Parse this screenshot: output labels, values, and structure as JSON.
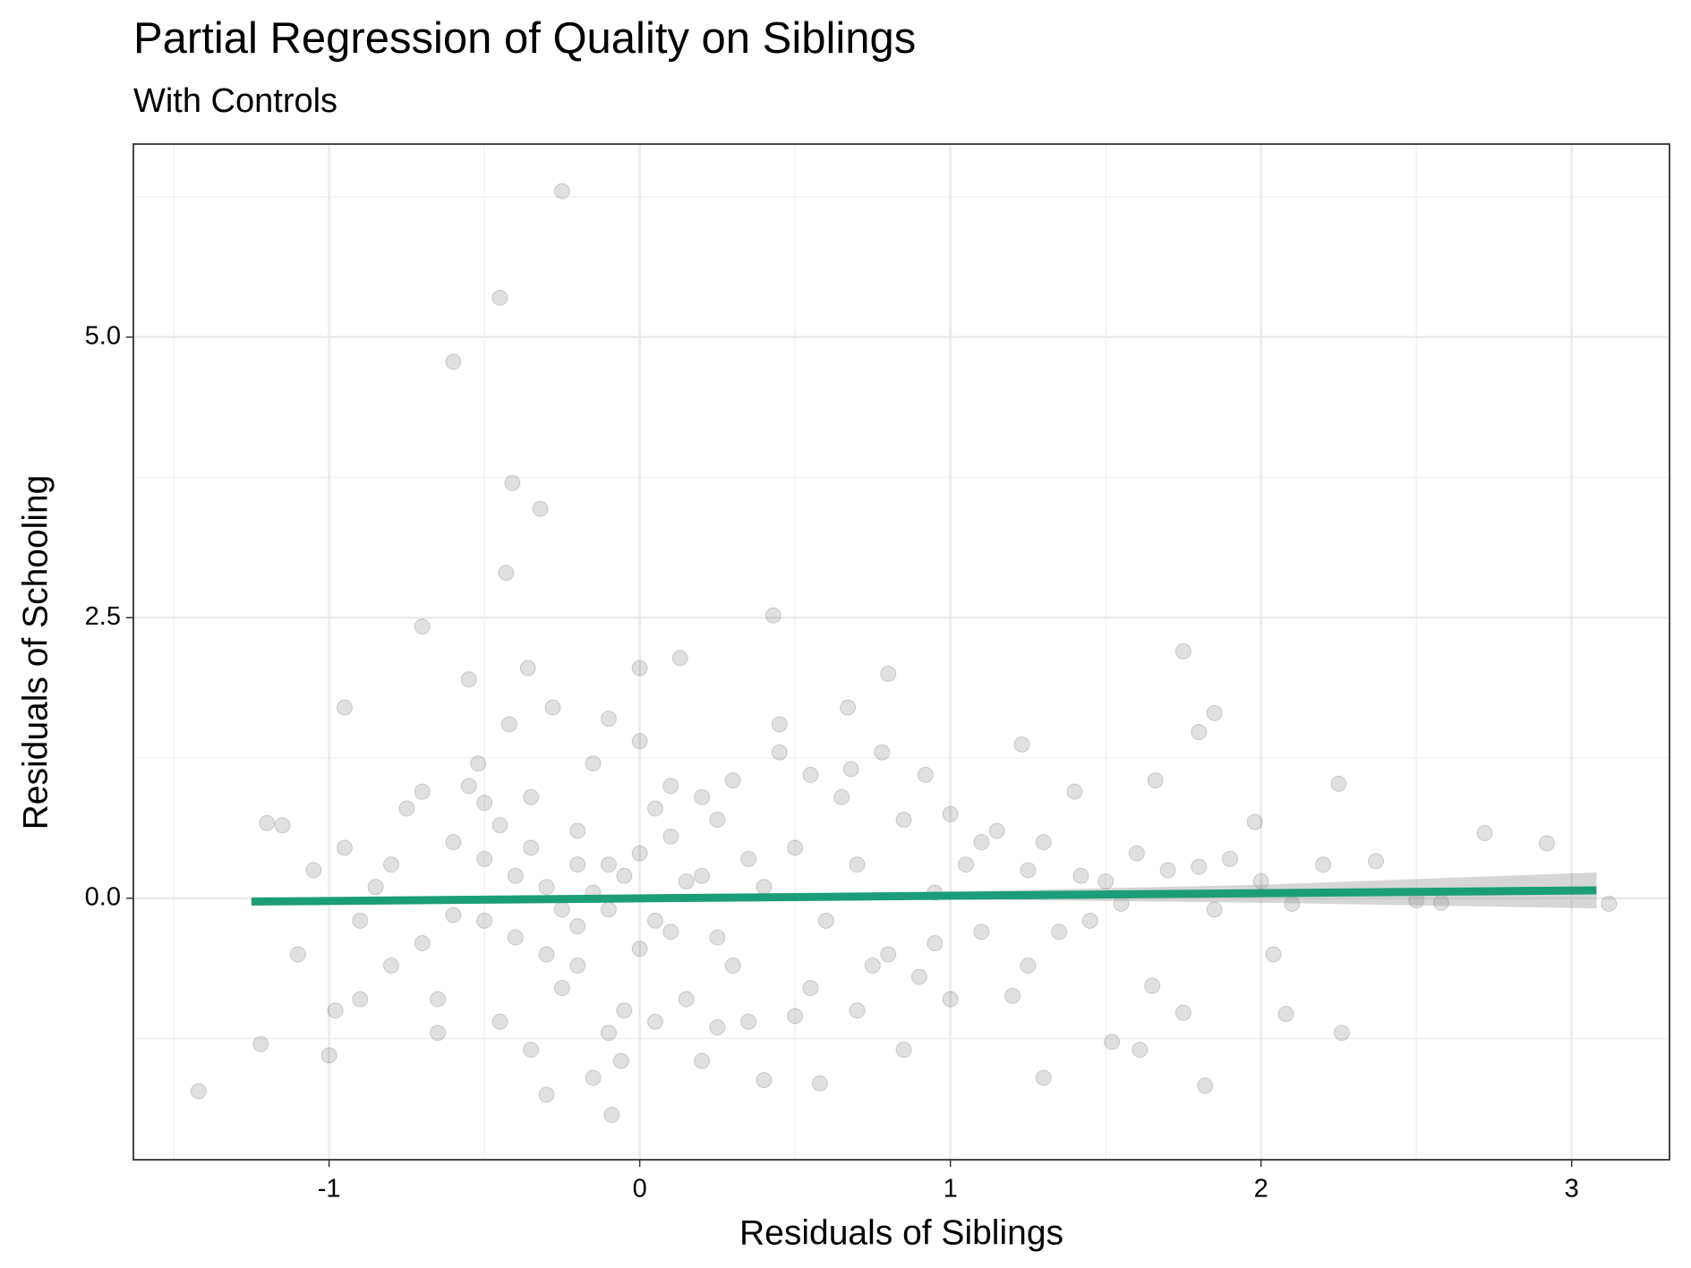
{
  "chart_data": {
    "type": "scatter",
    "title": "Partial Regression of Quality on Siblings",
    "subtitle": "With Controls",
    "x_label": "Residuals of Siblings",
    "y_label": "Residuals of Schooling",
    "xlim": [
      -1.63,
      3.315
    ],
    "ylim": [
      -2.33,
      6.72
    ],
    "xticks": [
      -1,
      0,
      1,
      2,
      3
    ],
    "yticks": [
      {
        "value": 0,
        "label": "0.0"
      },
      {
        "value": 2.5,
        "label": "2.5"
      },
      {
        "value": 5,
        "label": "5.0"
      }
    ],
    "grid": true,
    "color": "#000000",
    "point_alpha": 0.12,
    "x": [
      -0.25,
      -0.45,
      -0.6,
      -0.41,
      -0.32,
      -0.43,
      -0.7,
      0.43,
      1.75,
      -1.42,
      -0.09,
      1.82,
      0.13,
      0,
      -0.36,
      -0.55,
      0.8,
      1.85,
      1.8,
      0.67,
      -0.95,
      2.25,
      1.66,
      1.23,
      2.72,
      2.92,
      3.12,
      2.58,
      2.5,
      2.37,
      2.26,
      2.08,
      1.61,
      1.52,
      1.3,
      1.2,
      1.98,
      2.04,
      1.75,
      1.65,
      -1.2,
      -1.15,
      -1.22,
      -1.0,
      -0.98,
      -0.06,
      -0.3,
      -0.15,
      0.4,
      0.58,
      0.2,
      0.85,
      1.4,
      1.42,
      1.55,
      1.9,
      1.1,
      0.95,
      0.9,
      1.0,
      -0.8,
      -0.7,
      -0.6,
      -0.5,
      -0.4,
      -0.3,
      -0.2,
      -0.1,
      0,
      0.1,
      0.2,
      0.3,
      0.4,
      0.5,
      0.6,
      0.7,
      0.8,
      -0.75,
      -0.65,
      -0.55,
      -0.45,
      -0.35,
      -0.25,
      -0.15,
      -0.05,
      0.05,
      0.15,
      0.25,
      0.35,
      0.45,
      0.55,
      0.65,
      0.75,
      0.85,
      -0.9,
      -0.85,
      -1.05,
      -1.1,
      -0.95,
      -0.3,
      -0.2,
      -0.1,
      0,
      0.1,
      -0.4,
      -0.5,
      -0.6,
      -0.35,
      -0.25,
      -0.15,
      -0.05,
      0.05,
      0.15,
      0.25,
      0.35,
      -0.45,
      -0.2,
      0,
      -0.1,
      0.1,
      -0.28,
      -0.42,
      -0.52,
      0.3,
      0.45,
      0.55,
      0.68,
      0.78,
      0.92,
      1.0,
      1.05,
      1.15,
      1.25,
      1.3,
      1.35,
      1.45,
      1.5,
      1.6,
      1.7,
      1.8,
      1.85,
      2.0,
      2.1,
      2.2,
      1.25,
      1.1,
      0.95,
      -0.65,
      -0.35,
      -0.1,
      0.05,
      0.25,
      0.5,
      0.7,
      -0.8,
      -0.9,
      -0.7,
      -0.5,
      0.2,
      -0.2
    ],
    "values": [
      6.3,
      5.35,
      4.78,
      3.7,
      3.47,
      2.9,
      2.42,
      2.52,
      2.2,
      -1.72,
      -1.93,
      -1.67,
      2.14,
      2.05,
      2.05,
      1.95,
      2.0,
      1.65,
      1.48,
      1.7,
      1.7,
      1.02,
      1.05,
      1.37,
      0.58,
      0.49,
      -0.05,
      -0.04,
      -0.02,
      0.33,
      -1.2,
      -1.03,
      -1.35,
      -1.28,
      -1.6,
      -0.87,
      0.68,
      -0.5,
      -1.02,
      -0.78,
      0.67,
      0.65,
      -1.3,
      -1.4,
      -1.0,
      -1.45,
      -1.75,
      -1.6,
      -1.62,
      -1.65,
      -1.45,
      -1.35,
      0.95,
      0.2,
      -0.05,
      0.35,
      0.5,
      0.05,
      -0.7,
      -0.9,
      0.3,
      -0.4,
      0.5,
      -0.2,
      0.2,
      -0.5,
      0.6,
      -0.1,
      0.4,
      -0.3,
      0.2,
      -0.6,
      0.1,
      0.45,
      -0.2,
      0.3,
      -0.5,
      0.8,
      -0.9,
      1.0,
      -1.1,
      0.9,
      -0.8,
      1.2,
      -1.0,
      0.8,
      -0.9,
      0.7,
      -1.1,
      1.3,
      -0.8,
      0.9,
      -0.6,
      0.7,
      -0.2,
      0.1,
      0.25,
      -0.5,
      0.45,
      0.1,
      -0.25,
      0.3,
      -0.45,
      0.55,
      -0.35,
      0.35,
      -0.15,
      0.45,
      -0.1,
      0.05,
      0.2,
      -0.2,
      0.15,
      -0.35,
      0.35,
      0.65,
      -0.6,
      1.4,
      1.6,
      1.0,
      1.7,
      1.55,
      1.2,
      1.05,
      1.55,
      1.1,
      1.15,
      1.3,
      1.1,
      0.75,
      0.3,
      0.6,
      0.25,
      0.5,
      -0.3,
      -0.2,
      0.15,
      0.4,
      0.25,
      0.28,
      -0.1,
      0.15,
      -0.05,
      0.3,
      -0.6,
      -0.3,
      -0.4,
      -1.2,
      -1.35,
      -1.2,
      -1.1,
      -1.15,
      -1.05,
      -1.0,
      -0.6,
      -0.9,
      0.95,
      0.85,
      0.9,
      0.3
    ],
    "fit": {
      "color": "#1b9e77",
      "x": [
        -1.25,
        3.08
      ],
      "y": [
        -0.03,
        0.07
      ]
    },
    "band": {
      "color": "#999999",
      "x": [
        -1.25,
        0,
        1,
        2,
        3.08
      ],
      "lower": [
        -0.06,
        -0.02,
        -0.01,
        -0.04,
        -0.09
      ],
      "upper": [
        0.0,
        0.02,
        0.06,
        0.12,
        0.23
      ]
    }
  }
}
